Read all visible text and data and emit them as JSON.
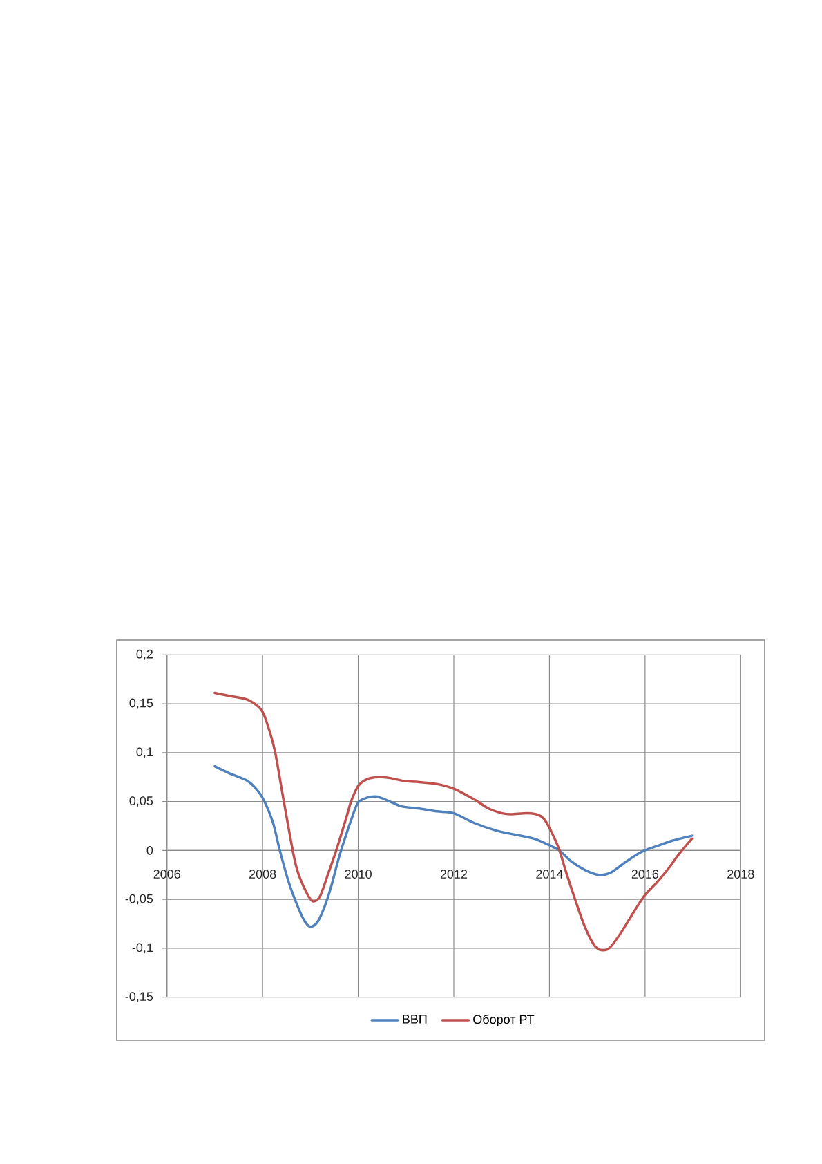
{
  "chart_data": {
    "type": "line",
    "xlim": [
      2006,
      2018
    ],
    "xticks": [
      2006,
      2008,
      2010,
      2012,
      2014,
      2016,
      2018
    ],
    "ylim": [
      -0.15,
      0.2
    ],
    "yticks": [
      {
        "value": -0.15,
        "label": "-0,15"
      },
      {
        "value": -0.1,
        "label": "-0,1"
      },
      {
        "value": -0.05,
        "label": "-0,05"
      },
      0,
      {
        "value": 0.05,
        "label": "0,05"
      },
      {
        "value": 0.1,
        "label": "0,1"
      },
      {
        "value": 0.15,
        "label": "0,15"
      },
      {
        "value": 0.2,
        "label": "0,2"
      }
    ],
    "grid": true,
    "legend": "bottom",
    "marker": "none",
    "line_style": "solid",
    "series": [
      {
        "name": "ВВП",
        "color": "#4f81bd",
        "x": [
          2007.0,
          2007.3,
          2007.69,
          2007.88,
          2008.02,
          2008.22,
          2008.36,
          2008.55,
          2008.75,
          2008.89,
          2009.01,
          2009.15,
          2009.3,
          2009.44,
          2009.61,
          2009.88,
          2010.0,
          2010.19,
          2010.38,
          2010.57,
          2010.91,
          2011.25,
          2011.64,
          2012.0,
          2012.43,
          2012.91,
          2013.3,
          2013.68,
          2013.97,
          2014.21,
          2014.45,
          2014.74,
          2015.03,
          2015.27,
          2015.56,
          2015.8,
          2015.99,
          2016.28,
          2016.57,
          2016.98
        ],
        "values": [
          0.086,
          0.079,
          0.071,
          0.062,
          0.052,
          0.028,
          0.0,
          -0.033,
          -0.059,
          -0.073,
          -0.078,
          -0.073,
          -0.057,
          -0.036,
          -0.005,
          0.035,
          0.049,
          0.054,
          0.055,
          0.052,
          0.045,
          0.043,
          0.04,
          0.038,
          0.028,
          0.02,
          0.016,
          0.012,
          0.006,
          0.0,
          -0.011,
          -0.02,
          -0.025,
          -0.023,
          -0.013,
          -0.005,
          0.0,
          0.005,
          0.01,
          0.015
        ]
      },
      {
        "name": "Оборот РТ",
        "color": "#c0504d",
        "x": [
          2007.0,
          2007.3,
          2007.69,
          2007.97,
          2008.1,
          2008.26,
          2008.43,
          2008.65,
          2008.75,
          2008.94,
          2009.06,
          2009.2,
          2009.37,
          2009.54,
          2009.76,
          2009.85,
          2010.0,
          2010.19,
          2010.43,
          2010.67,
          2010.96,
          2011.25,
          2011.64,
          2012.0,
          2012.43,
          2012.72,
          2013.01,
          2013.2,
          2013.54,
          2013.78,
          2013.92,
          2014.09,
          2014.21,
          2014.36,
          2014.55,
          2014.74,
          2014.94,
          2015.1,
          2015.27,
          2015.51,
          2015.75,
          2015.99,
          2016.24,
          2016.48,
          2016.72,
          2016.98
        ],
        "values": [
          0.161,
          0.158,
          0.154,
          0.144,
          0.129,
          0.101,
          0.054,
          -0.005,
          -0.024,
          -0.045,
          -0.052,
          -0.047,
          -0.024,
          0.0,
          0.035,
          0.05,
          0.066,
          0.073,
          0.075,
          0.074,
          0.071,
          0.07,
          0.068,
          0.063,
          0.052,
          0.043,
          0.038,
          0.037,
          0.038,
          0.036,
          0.03,
          0.014,
          0.0,
          -0.024,
          -0.052,
          -0.078,
          -0.097,
          -0.102,
          -0.099,
          -0.083,
          -0.064,
          -0.046,
          -0.033,
          -0.019,
          -0.003,
          0.012
        ]
      }
    ]
  }
}
